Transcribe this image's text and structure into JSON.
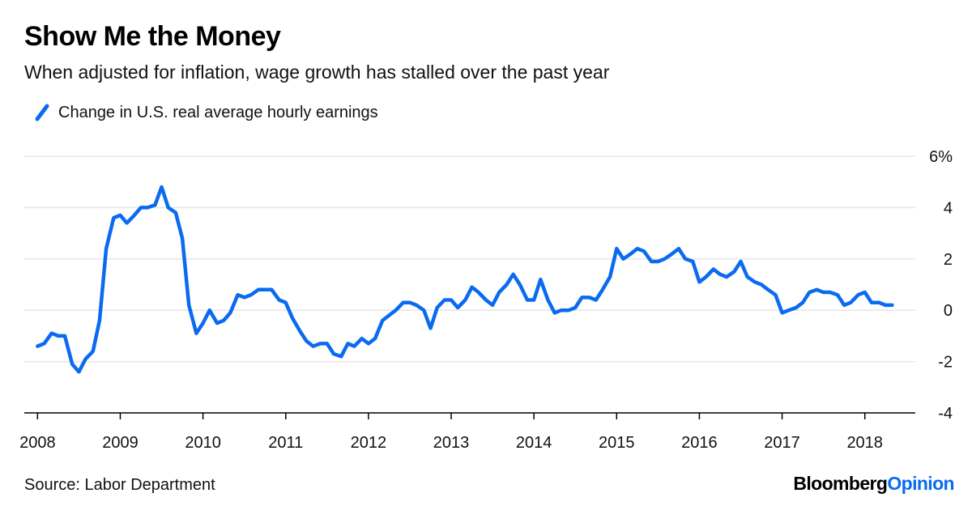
{
  "header": {
    "title": "Show Me the Money",
    "subtitle": "When adjusted for inflation, wage growth has stalled over the past year"
  },
  "footer": {
    "source": "Source: Labor Department",
    "brand_main": "Bloomberg",
    "brand_accent": "Opinion"
  },
  "colors": {
    "series": "#0a6bf0",
    "grid": "#e6e6e6",
    "axis": "#000000"
  },
  "chart_data": {
    "type": "line",
    "title": "Show Me the Money",
    "subtitle": "When adjusted for inflation, wage growth has stalled over the past year",
    "xlabel": "",
    "ylabel": "",
    "x_unit": "year",
    "xlim": [
      2007.84,
      2018.61
    ],
    "ylim": [
      -4,
      6
    ],
    "y_ticks": [
      -4,
      -2,
      0,
      2,
      4,
      6
    ],
    "y_tick_labels": [
      "-4",
      "-2",
      "0",
      "2",
      "4",
      "6%"
    ],
    "x_ticks": [
      2008,
      2009,
      2010,
      2011,
      2012,
      2013,
      2014,
      2015,
      2016,
      2017,
      2018
    ],
    "x_tick_labels": [
      "2008",
      "2009",
      "2010",
      "2011",
      "2012",
      "2013",
      "2014",
      "2015",
      "2016",
      "2017",
      "2018"
    ],
    "grid": true,
    "legend_position": "top-left",
    "series": [
      {
        "name": "Change in U.S. real average hourly earnings",
        "x": [
          2008.0,
          2008.08,
          2008.17,
          2008.25,
          2008.33,
          2008.42,
          2008.5,
          2008.58,
          2008.67,
          2008.75,
          2008.83,
          2008.92,
          2009.0,
          2009.08,
          2009.17,
          2009.25,
          2009.33,
          2009.42,
          2009.5,
          2009.58,
          2009.67,
          2009.75,
          2009.83,
          2009.92,
          2010.0,
          2010.08,
          2010.17,
          2010.25,
          2010.33,
          2010.42,
          2010.5,
          2010.58,
          2010.67,
          2010.75,
          2010.83,
          2010.92,
          2011.0,
          2011.08,
          2011.17,
          2011.25,
          2011.33,
          2011.42,
          2011.5,
          2011.58,
          2011.67,
          2011.75,
          2011.83,
          2011.92,
          2012.0,
          2012.08,
          2012.17,
          2012.25,
          2012.33,
          2012.42,
          2012.5,
          2012.58,
          2012.67,
          2012.75,
          2012.83,
          2012.92,
          2013.0,
          2013.08,
          2013.17,
          2013.25,
          2013.33,
          2013.42,
          2013.5,
          2013.58,
          2013.67,
          2013.75,
          2013.83,
          2013.92,
          2014.0,
          2014.08,
          2014.17,
          2014.25,
          2014.33,
          2014.42,
          2014.5,
          2014.58,
          2014.67,
          2014.75,
          2014.83,
          2014.92,
          2015.0,
          2015.08,
          2015.17,
          2015.25,
          2015.33,
          2015.42,
          2015.5,
          2015.58,
          2015.67,
          2015.75,
          2015.83,
          2015.92,
          2016.0,
          2016.08,
          2016.17,
          2016.25,
          2016.33,
          2016.42,
          2016.5,
          2016.58,
          2016.67,
          2016.75,
          2016.83,
          2016.92,
          2017.0,
          2017.08,
          2017.17,
          2017.25,
          2017.33,
          2017.42,
          2017.5,
          2017.58,
          2017.67,
          2017.75,
          2017.83,
          2017.92,
          2018.0,
          2018.08,
          2018.17,
          2018.25,
          2018.33
        ],
        "values": [
          -1.4,
          -1.3,
          -0.9,
          -1.0,
          -1.0,
          -2.1,
          -2.4,
          -1.9,
          -1.6,
          -0.4,
          2.4,
          3.6,
          3.7,
          3.4,
          3.7,
          4.0,
          4.0,
          4.1,
          4.8,
          4.0,
          3.8,
          2.8,
          0.2,
          -0.9,
          -0.5,
          0.0,
          -0.5,
          -0.4,
          -0.1,
          0.6,
          0.5,
          0.6,
          0.8,
          0.8,
          0.8,
          0.4,
          0.3,
          -0.3,
          -0.8,
          -1.2,
          -1.4,
          -1.3,
          -1.3,
          -1.7,
          -1.8,
          -1.3,
          -1.4,
          -1.1,
          -1.3,
          -1.1,
          -0.4,
          -0.2,
          0.0,
          0.3,
          0.3,
          0.2,
          0.0,
          -0.7,
          0.1,
          0.4,
          0.4,
          0.1,
          0.4,
          0.9,
          0.7,
          0.4,
          0.2,
          0.7,
          1.0,
          1.4,
          1.0,
          0.4,
          0.4,
          1.2,
          0.4,
          -0.1,
          0.0,
          0.0,
          0.1,
          0.5,
          0.5,
          0.4,
          0.8,
          1.3,
          2.4,
          2.0,
          2.2,
          2.4,
          2.3,
          1.9,
          1.9,
          2.0,
          2.2,
          2.4,
          2.0,
          1.9,
          1.1,
          1.3,
          1.6,
          1.4,
          1.3,
          1.5,
          1.9,
          1.3,
          1.1,
          1.0,
          0.8,
          0.6,
          -0.1,
          0.0,
          0.1,
          0.3,
          0.7,
          0.8,
          0.7,
          0.7,
          0.6,
          0.2,
          0.3,
          0.6,
          0.7,
          0.3,
          0.3,
          0.2,
          0.2
        ]
      }
    ]
  }
}
